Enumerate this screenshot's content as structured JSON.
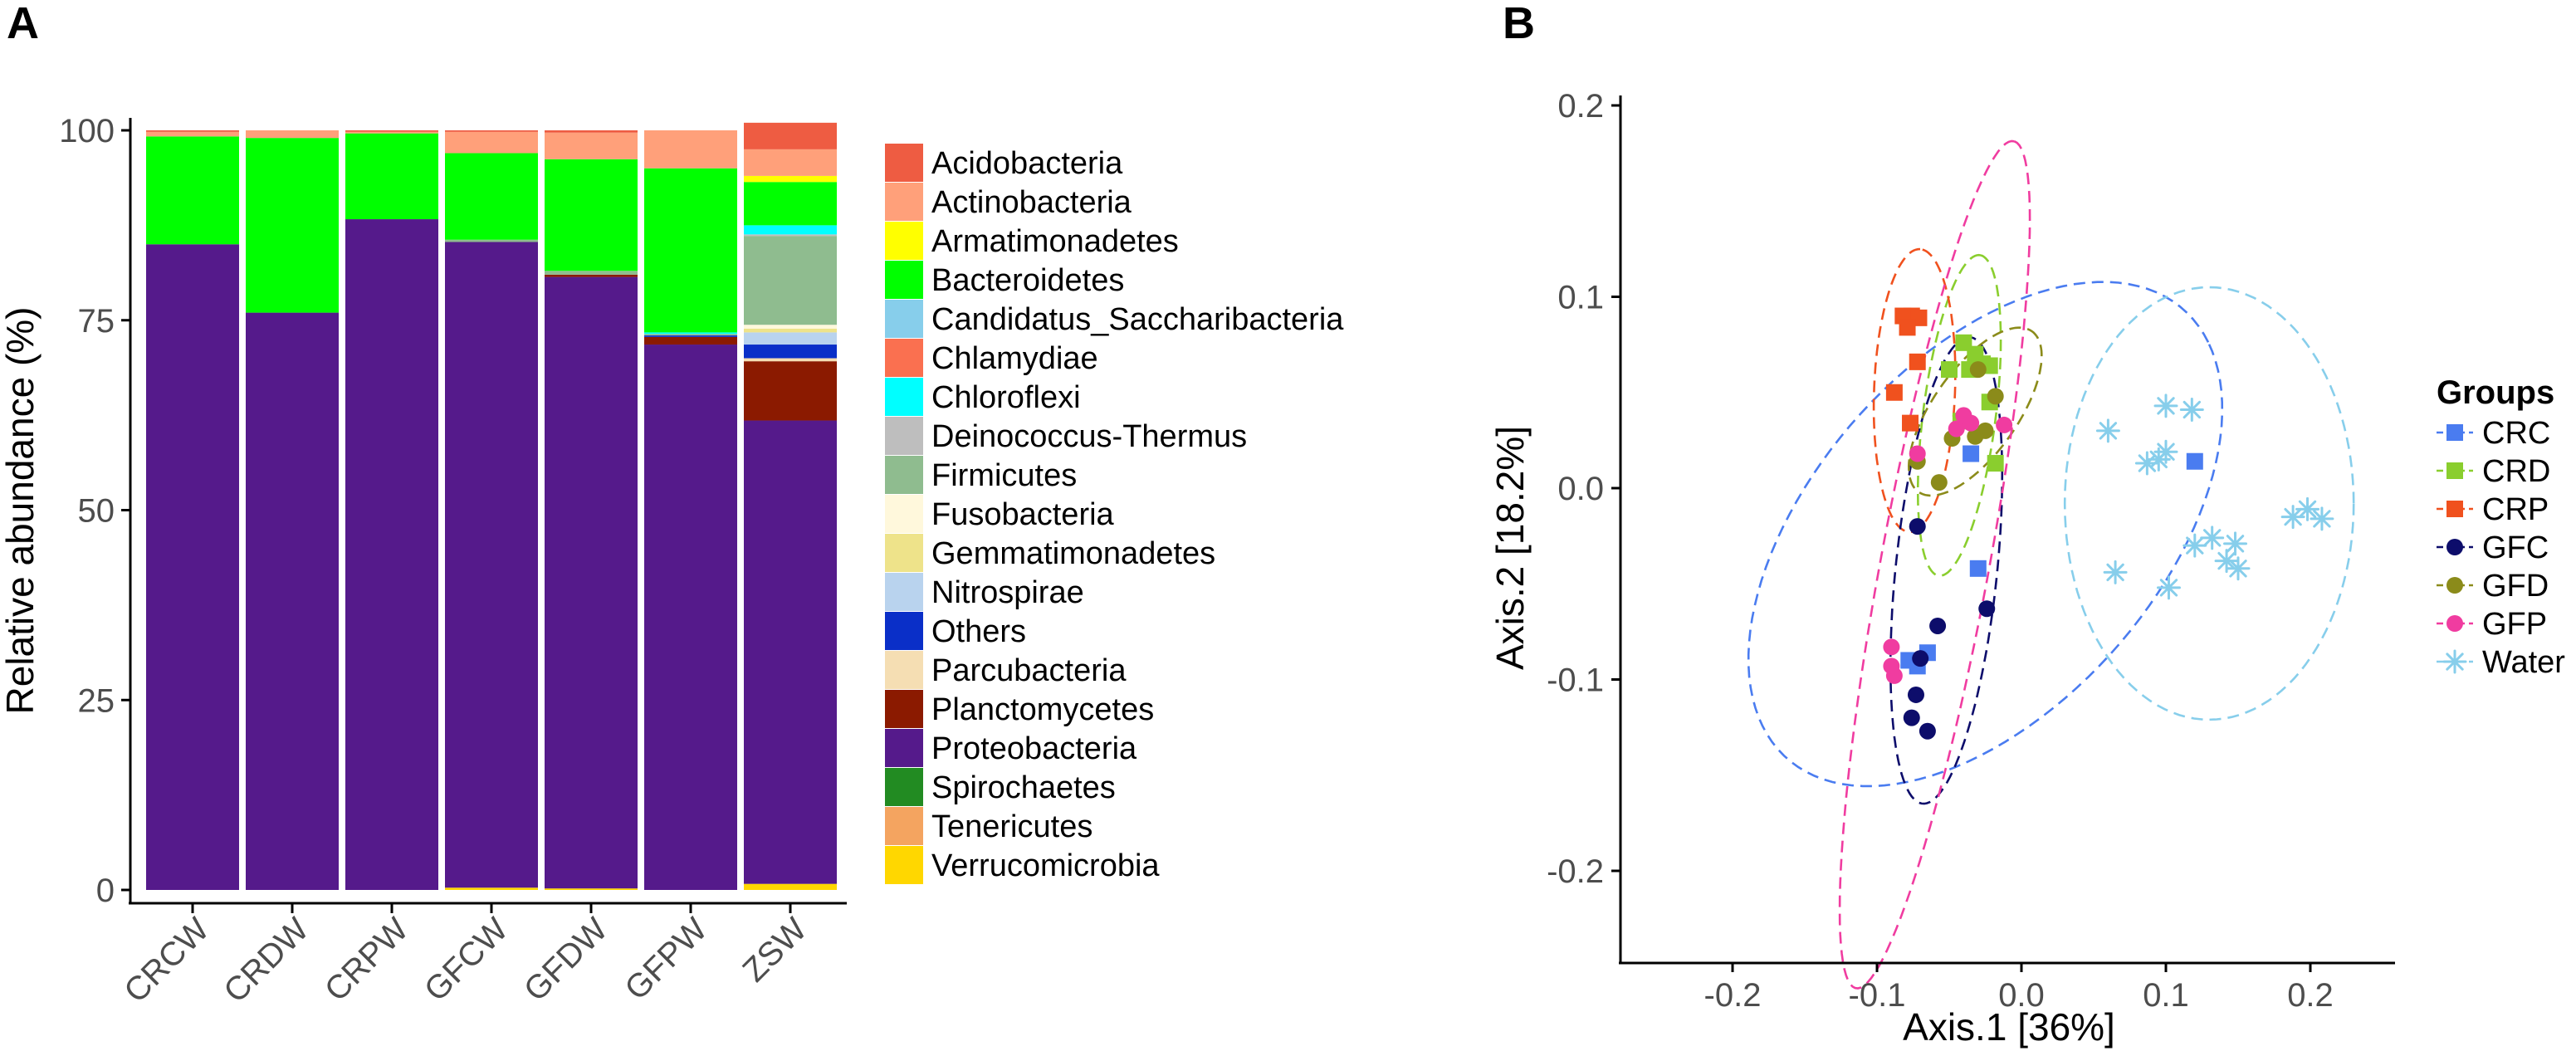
{
  "chart_data": [
    {
      "panel": "A",
      "type": "bar",
      "stacked": true,
      "ylabel": "Relative abundance (%)",
      "xlabel": "",
      "ylim": [
        0,
        100
      ],
      "yticks": [
        0,
        25,
        50,
        75,
        100
      ],
      "categories": [
        "CRCW",
        "CRDW",
        "CRPW",
        "GFCW",
        "GFDW",
        "GFPW",
        "ZSW"
      ],
      "legend_position": "right",
      "series": [
        {
          "name": "Verrucomicrobia",
          "color": "#FFD700",
          "values": [
            0,
            0,
            0,
            0.3,
            0.2,
            0,
            0.8
          ]
        },
        {
          "name": "Tenericutes",
          "color": "#F4A460",
          "values": [
            0,
            0,
            0,
            0,
            0,
            0,
            0
          ]
        },
        {
          "name": "Spirochaetes",
          "color": "#228B22",
          "values": [
            0,
            0,
            0,
            0,
            0,
            0,
            0
          ]
        },
        {
          "name": "Proteobacteria",
          "color": "#551A8B",
          "values": [
            85,
            76,
            88.3,
            85,
            80.5,
            71.8,
            61
          ]
        },
        {
          "name": "Planctomycetes",
          "color": "#8B1A00",
          "values": [
            0,
            0,
            0,
            0,
            0.3,
            1,
            7.8
          ]
        },
        {
          "name": "Parcubacteria",
          "color": "#F5DEB3",
          "values": [
            0,
            0,
            0,
            0,
            0,
            0,
            0.4
          ]
        },
        {
          "name": "Others",
          "color": "#0A2FC8",
          "values": [
            0,
            0,
            0,
            0,
            0,
            0.2,
            1.8
          ]
        },
        {
          "name": "Nitrospirae",
          "color": "#B9D3EE",
          "values": [
            0,
            0,
            0,
            0,
            0,
            0,
            1.6
          ]
        },
        {
          "name": "Gemmatimonadetes",
          "color": "#EEE38A",
          "values": [
            0,
            0,
            0,
            0,
            0,
            0,
            0.5
          ]
        },
        {
          "name": "Fusobacteria",
          "color": "#FFF8DC",
          "values": [
            0,
            0,
            0,
            0,
            0,
            0,
            0.5
          ]
        },
        {
          "name": "Firmicutes",
          "color": "#8FBC8F",
          "values": [
            0,
            0,
            0,
            0.3,
            0.5,
            0.2,
            11.7
          ]
        },
        {
          "name": "Deinococcus-Thermus",
          "color": "#BEBEBE",
          "values": [
            0,
            0,
            0,
            0,
            0,
            0,
            0.2
          ]
        },
        {
          "name": "Chloroflexi",
          "color": "#00FFFF",
          "values": [
            0,
            0,
            0,
            0,
            0,
            0.2,
            1.2
          ]
        },
        {
          "name": "Chlamydiae",
          "color": "#FA7050",
          "values": [
            0,
            0,
            0,
            0,
            0,
            0,
            0
          ]
        },
        {
          "name": "Candidatus_Saccharibacteria",
          "color": "#87CEEB",
          "values": [
            0,
            0,
            0,
            0,
            0,
            0,
            0
          ]
        },
        {
          "name": "Bacteroidetes",
          "color": "#00FF00",
          "values": [
            14.2,
            23,
            11.3,
            11.4,
            14.7,
            21.6,
            5.7
          ]
        },
        {
          "name": "Armatimonadetes",
          "color": "#FFFF00",
          "values": [
            0,
            0,
            0,
            0,
            0,
            0,
            0.8
          ]
        },
        {
          "name": "Actinobacteria",
          "color": "#FFA07A",
          "values": [
            0.6,
            1,
            0.2,
            2.8,
            3.5,
            5,
            3.5
          ]
        },
        {
          "name": "Acidobacteria",
          "color": "#EE5C42",
          "values": [
            0.2,
            0,
            0.2,
            0.2,
            0.3,
            0,
            3.5
          ]
        }
      ],
      "legend_order": [
        "Acidobacteria",
        "Actinobacteria",
        "Armatimonadetes",
        "Bacteroidetes",
        "Candidatus_Saccharibacteria",
        "Chlamydiae",
        "Chloroflexi",
        "Deinococcus-Thermus",
        "Firmicutes",
        "Fusobacteria",
        "Gemmatimonadetes",
        "Nitrospirae",
        "Others",
        "Parcubacteria",
        "Planctomycetes",
        "Proteobacteria",
        "Spirochaetes",
        "Tenericutes",
        "Verrucomicrobia"
      ]
    },
    {
      "panel": "B",
      "type": "scatter",
      "xlabel": "Axis.1   [36%]",
      "ylabel": "Axis.2   [18.2%]",
      "xlim": [
        -0.29,
        0.27
      ],
      "ylim": [
        -0.25,
        0.21
      ],
      "xticks": [
        -0.2,
        -0.1,
        0.0,
        0.1,
        0.2
      ],
      "xtick_labels": [
        "-0.2",
        "-0.1",
        "0.0",
        "0.1",
        "0.2"
      ],
      "yticks": [
        -0.2,
        -0.1,
        0.0,
        0.1,
        0.2
      ],
      "ytick_labels": [
        "-0.2",
        "-0.1",
        "0.0",
        "0.1",
        "0.2"
      ],
      "legend_title": "Groups",
      "legend_position": "right",
      "series": [
        {
          "name": "CRC",
          "color": "#4A7CF0",
          "shape": "square",
          "points": [
            [
              -0.035,
              0.018
            ],
            [
              -0.03,
              -0.042
            ],
            [
              0.12,
              0.014
            ],
            [
              -0.072,
              -0.093
            ],
            [
              -0.065,
              -0.086
            ],
            [
              -0.078,
              -0.09
            ]
          ],
          "ellipse": {
            "cx": -0.025,
            "cy": -0.024,
            "rx": 0.184,
            "ry": 0.102,
            "angle": 33
          }
        },
        {
          "name": "CRD",
          "color": "#8ACE2E",
          "shape": "square",
          "points": [
            [
              -0.04,
              0.076
            ],
            [
              -0.032,
              0.07
            ],
            [
              -0.05,
              0.062
            ],
            [
              -0.027,
              0.065
            ],
            [
              -0.022,
              0.064
            ],
            [
              -0.036,
              0.062
            ],
            [
              -0.022,
              0.045
            ],
            [
              -0.042,
              0.035
            ],
            [
              -0.018,
              0.013
            ]
          ],
          "ellipse": {
            "cx": -0.043,
            "cy": 0.038,
            "rx": 0.085,
            "ry": 0.025,
            "angle": 80
          }
        },
        {
          "name": "CRP",
          "color": "#F0511E",
          "shape": "square",
          "points": [
            [
              -0.082,
              0.09
            ],
            [
              -0.076,
              0.09
            ],
            [
              -0.071,
              0.089
            ],
            [
              -0.079,
              0.084
            ],
            [
              -0.072,
              0.066
            ],
            [
              -0.088,
              0.05
            ],
            [
              -0.077,
              0.034
            ]
          ],
          "ellipse": {
            "cx": -0.074,
            "cy": 0.051,
            "rx": 0.074,
            "ry": 0.028,
            "angle": 87
          }
        },
        {
          "name": "GFC",
          "color": "#0D0D6B",
          "shape": "circle",
          "points": [
            [
              -0.072,
              -0.02
            ],
            [
              -0.058,
              -0.072
            ],
            [
              -0.024,
              -0.063
            ],
            [
              -0.07,
              -0.089
            ],
            [
              -0.073,
              -0.108
            ],
            [
              -0.076,
              -0.12
            ],
            [
              -0.065,
              -0.127
            ]
          ],
          "ellipse": {
            "cx": -0.052,
            "cy": -0.043,
            "rx": 0.123,
            "ry": 0.035,
            "angle": 82
          }
        },
        {
          "name": "GFD",
          "color": "#8B8B1A",
          "shape": "circle",
          "points": [
            [
              -0.018,
              0.048
            ],
            [
              -0.03,
              0.062
            ],
            [
              -0.025,
              0.03
            ],
            [
              -0.048,
              0.026
            ],
            [
              -0.032,
              0.027
            ],
            [
              -0.072,
              0.014
            ],
            [
              -0.057,
              0.003
            ]
          ],
          "ellipse": {
            "cx": -0.032,
            "cy": 0.04,
            "rx": 0.058,
            "ry": 0.026,
            "angle": 43
          }
        },
        {
          "name": "GFP",
          "color": "#F03CA0",
          "shape": "circle",
          "points": [
            [
              -0.04,
              0.038
            ],
            [
              -0.012,
              0.033
            ],
            [
              -0.035,
              0.034
            ],
            [
              -0.045,
              0.031
            ],
            [
              -0.072,
              0.018
            ],
            [
              -0.09,
              -0.083
            ],
            [
              -0.09,
              -0.093
            ],
            [
              -0.088,
              -0.098
            ]
          ],
          "ellipse": {
            "cx": -0.06,
            "cy": -0.04,
            "rx": 0.228,
            "ry": 0.037,
            "angle": 76
          }
        },
        {
          "name": "Water",
          "color": "#87CEEB",
          "shape": "asterisk",
          "points": [
            [
              0.06,
              0.03
            ],
            [
              0.1,
              0.043
            ],
            [
              0.118,
              0.041
            ],
            [
              0.087,
              0.013
            ],
            [
              0.1,
              0.019
            ],
            [
              0.095,
              0.015
            ],
            [
              0.065,
              -0.044
            ],
            [
              0.102,
              -0.052
            ],
            [
              0.12,
              -0.03
            ],
            [
              0.132,
              -0.026
            ],
            [
              0.148,
              -0.029
            ],
            [
              0.142,
              -0.038
            ],
            [
              0.15,
              -0.042
            ],
            [
              0.188,
              -0.015
            ],
            [
              0.198,
              -0.011
            ],
            [
              0.208,
              -0.016
            ]
          ],
          "ellipse": {
            "cx": 0.13,
            "cy": -0.008,
            "rx": 0.1,
            "ry": 0.113,
            "angle": 0
          }
        }
      ]
    }
  ],
  "panels": {
    "a_label": "A",
    "b_label": "B"
  }
}
